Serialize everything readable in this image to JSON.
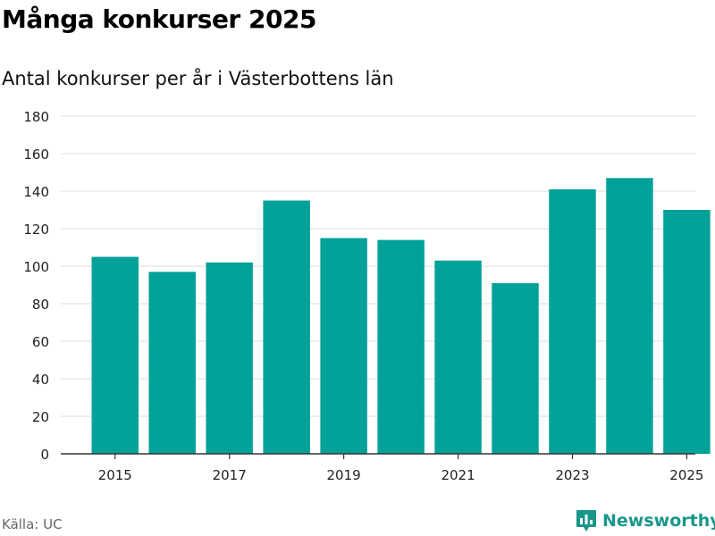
{
  "header": {
    "title": "Många konkurser 2025",
    "subtitle": "Antal konkurser per år i Västerbottens län"
  },
  "footer": {
    "source": "Källa: UC",
    "brand_name": "Newsworthy",
    "brand_icon": "newsworthy-logo-icon",
    "brand_color": "#19968b"
  },
  "chart_data": {
    "type": "bar",
    "title": "Många konkurser 2025",
    "subtitle": "Antal konkurser per år i Västerbottens län",
    "xlabel": "",
    "ylabel": "",
    "categories": [
      "2015",
      "2016",
      "2017",
      "2018",
      "2019",
      "2020",
      "2021",
      "2022",
      "2023",
      "2024",
      "2025"
    ],
    "values": [
      105,
      97,
      102,
      135,
      115,
      114,
      103,
      91,
      141,
      147,
      130
    ],
    "x_tick_labels": [
      "2015",
      "2017",
      "2019",
      "2021",
      "2023",
      "2025"
    ],
    "y_ticks": [
      0,
      20,
      40,
      60,
      80,
      100,
      120,
      140,
      160,
      180
    ],
    "ylim": [
      0,
      180
    ],
    "grid": true,
    "legend": "none",
    "bar_color": "#00a199",
    "grid_color": "#dcdcdc",
    "axis_color": "#333333"
  }
}
